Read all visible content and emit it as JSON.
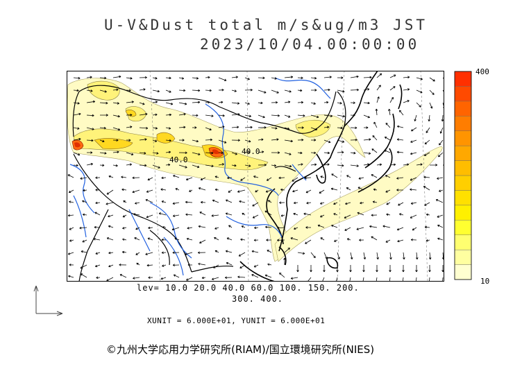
{
  "header": {
    "title_line1": "U-V&Dust total m/s&ug/m3 JST",
    "title_line2": "2023/10/04.00:00:00"
  },
  "map": {
    "contour_labels": [
      "40.0",
      "40.0"
    ]
  },
  "colorbar": {
    "max_label": "400",
    "min_label": "10",
    "colors": [
      "#ffffd0",
      "#ffffa0",
      "#ffff70",
      "#ffff30",
      "#fff000",
      "#ffe000",
      "#ffcf00",
      "#ffbd00",
      "#ffa800",
      "#ff9400",
      "#ff7d00",
      "#ff6400",
      "#ff4a00",
      "#ff3000"
    ]
  },
  "levels": {
    "line1": "lev= 10.0 20.0 40.0 60.0 100. 150. 200.",
    "line2": "300. 400."
  },
  "units": "XUNIT = 6.000E+01, YUNIT = 6.000E+01",
  "credit": "©九州大学応用力学研究所(RIAM)/国立環境研究所(NIES)"
}
